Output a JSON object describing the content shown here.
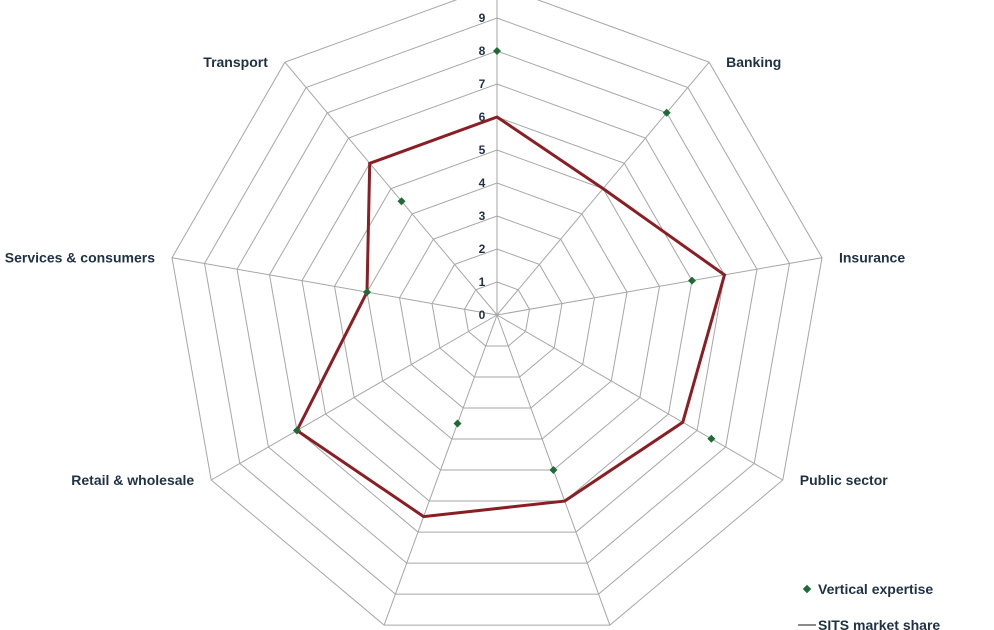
{
  "chart_data": {
    "type": "radar",
    "categories": [
      "",
      "Banking",
      "Insurance",
      "Public sector",
      "",
      "",
      "Retail & wholesale",
      "Services & consumers",
      "Transport"
    ],
    "ticks": [
      "0",
      "1",
      "2",
      "3",
      "4",
      "5",
      "6",
      "7",
      "8",
      "9"
    ],
    "rlim": [
      0,
      9
    ],
    "series": [
      {
        "name": "Vertical expertise",
        "values": [
          8,
          8,
          6,
          7.5,
          5,
          3.5,
          7,
          4,
          4.5
        ],
        "color": "#1e6b35",
        "style": "markers"
      },
      {
        "name": "",
        "values": [
          6,
          5,
          7,
          6.5,
          6,
          6.5,
          7,
          4,
          6
        ],
        "color": "#8b1e24",
        "style": "line"
      }
    ],
    "legend": [
      {
        "label": "Vertical expertise",
        "key": "diamond"
      },
      {
        "label": "SITS market share",
        "key": "line"
      }
    ],
    "grid_color": "#a6a6a6"
  }
}
